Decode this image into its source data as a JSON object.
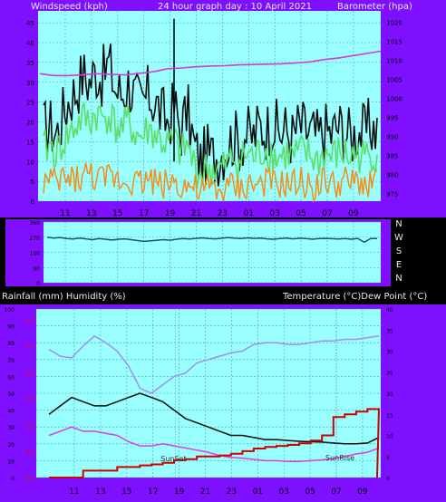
{
  "header": {
    "left_label": "Windspeed (kph)",
    "center_label": "24 hour graph day : 10 April 2021",
    "right_label": "Barometer (hpa)"
  },
  "lower_header": {
    "left_label": "Rainfall (mm)  Humidity (%)",
    "right_label": "Temperature (°C)Dew Point (°C)"
  },
  "compass": {
    "labels": [
      "N",
      "W",
      "S",
      "E",
      "N"
    ]
  },
  "annotations": {
    "sunset": "SunSet",
    "sunrise": "SunRise"
  },
  "colors": {
    "page_bg": "#000000",
    "axis_bg": "#7f10ff",
    "plot_bg": "#99ffff",
    "grid": "#4aa7a7",
    "wind_gust": "#0c0c0c",
    "wind_mid": "#5dde68",
    "wind_avg": "#f28e1c",
    "barometer": "#d63ad6",
    "wind_direction": "#1a4f7a",
    "humidity": "#a58cf0",
    "temperature": "#0a0a0a",
    "dew_point": "#e23be3",
    "rainfall": "#d00000",
    "axis_text": "#000000",
    "red_axis_text": "#e00000",
    "header_text": "#e8e8e8"
  },
  "chart_data": [
    {
      "type": "line",
      "panel": "wind_barometer",
      "x_ticks": [
        "11",
        "13",
        "15",
        "17",
        "19",
        "21",
        "23",
        "01",
        "03",
        "05",
        "07",
        "09"
      ],
      "y_left": {
        "label": "Windspeed (kph)",
        "ticks": [
          0,
          5,
          10,
          15,
          20,
          25,
          30,
          35,
          40,
          45
        ],
        "lim": [
          0,
          48
        ]
      },
      "y_right": {
        "label": "Barometer (hpa)",
        "ticks": [
          975,
          980,
          985,
          990,
          995,
          1000,
          1005,
          1010,
          1015,
          1020
        ],
        "lim": [
          973,
          1023
        ]
      },
      "series": [
        {
          "name": "Gust",
          "axis": "left",
          "values": [
            18,
            19,
            17,
            22,
            26,
            28,
            32,
            30,
            33,
            31,
            35,
            28,
            27,
            30,
            26,
            24,
            27,
            25,
            22,
            20,
            24,
            18,
            23,
            14,
            10,
            12,
            11,
            12,
            14,
            16,
            15,
            17,
            16,
            19,
            18,
            20,
            17,
            18,
            16,
            19,
            18,
            17,
            16,
            18,
            17,
            19,
            18,
            16,
            18,
            17,
            19,
            18
          ]
        },
        {
          "name": "Average",
          "axis": "left",
          "values": [
            13,
            14,
            12,
            15,
            17,
            19,
            21,
            20,
            22,
            21,
            22,
            19,
            18,
            20,
            17,
            16,
            18,
            17,
            15,
            14,
            15,
            12,
            14,
            9,
            7,
            8,
            8,
            8,
            9,
            11,
            10,
            12,
            11,
            12,
            13,
            12,
            11,
            12,
            11,
            12,
            12,
            11,
            10,
            12,
            11,
            12,
            12,
            11,
            12,
            11,
            12,
            12
          ]
        },
        {
          "name": "Wind",
          "axis": "left",
          "values": [
            5,
            5,
            4,
            6,
            5,
            6,
            6,
            7,
            6,
            5,
            6,
            6,
            5,
            6,
            5,
            5,
            6,
            5,
            4,
            5,
            5,
            4,
            4,
            3,
            2,
            3,
            3,
            2,
            3,
            4,
            3,
            4,
            4,
            4,
            5,
            4,
            4,
            4,
            4,
            5,
            4,
            4,
            4,
            5,
            4,
            4,
            5,
            4,
            5,
            4,
            5,
            5
          ]
        },
        {
          "name": "Barometer",
          "axis": "right",
          "x": [
            0,
            1,
            2,
            3,
            4,
            5,
            6,
            7,
            8,
            9,
            10,
            11,
            12,
            13,
            14,
            15,
            16,
            17,
            18,
            19,
            20,
            21,
            22,
            23,
            24
          ],
          "values": [
            1006.5,
            1006.0,
            1006.0,
            1006.2,
            1006.5,
            1006.3,
            1006.2,
            1006.6,
            1007.0,
            1007.8,
            1008.0,
            1008.3,
            1008.5,
            1008.6,
            1008.8,
            1008.9,
            1009.0,
            1009.1,
            1009.3,
            1009.6,
            1010.2,
            1010.6,
            1011.2,
            1011.8,
            1012.4
          ]
        }
      ]
    },
    {
      "type": "line",
      "panel": "wind_direction",
      "x_ticks": [],
      "y_left": {
        "label": "",
        "ticks": [
          0,
          90,
          180,
          270,
          360
        ],
        "lim": [
          0,
          360
        ]
      },
      "y_right": {
        "label": "",
        "ticks": [
          "N",
          "W",
          "S",
          "E",
          "N"
        ]
      },
      "series": [
        {
          "name": "Direction",
          "values": [
            270,
            265,
            268,
            262,
            259,
            265,
            260,
            255,
            262,
            258,
            253,
            258,
            260,
            255,
            250,
            245,
            248,
            252,
            255,
            252,
            258,
            262,
            259,
            263,
            266,
            262,
            260,
            264,
            268,
            264,
            262,
            266,
            263,
            265,
            260,
            258,
            262,
            265,
            260,
            264,
            262,
            258,
            262,
            263,
            261,
            259,
            262,
            258,
            263,
            240,
            262,
            262
          ]
        }
      ]
    },
    {
      "type": "line",
      "panel": "temperature_humidity_rain",
      "x_ticks": [
        "11",
        "13",
        "15",
        "17",
        "19",
        "21",
        "23",
        "01",
        "03",
        "05",
        "07",
        "09"
      ],
      "y_left": {
        "label": "Rainfall (mm)  Humidity (%)",
        "ticks": [
          0,
          10,
          20,
          30,
          40,
          50,
          60,
          70,
          80,
          90,
          100
        ],
        "lim": [
          0,
          100
        ]
      },
      "y_left_inner": {
        "label": "Rainfall (mm)",
        "ticks": [
          "0.0",
          "0.5",
          "1.0",
          "1.5",
          "2.0",
          "2.5",
          "3.0"
        ],
        "lim": [
          0,
          3.2
        ]
      },
      "y_right": {
        "label": "Temperature (°C)",
        "ticks": [
          0,
          5,
          10,
          15,
          20,
          25,
          30,
          35,
          40
        ],
        "lim": [
          0,
          40
        ]
      },
      "series": [
        {
          "name": "Humidity",
          "axis": "left",
          "values": [
            76,
            72,
            71,
            78,
            84,
            80,
            75,
            66,
            53,
            50,
            55,
            60,
            62,
            68,
            70,
            72,
            74,
            75,
            79,
            80,
            80,
            79,
            79,
            80,
            81,
            81,
            82,
            82,
            83,
            84
          ]
        },
        {
          "name": "Temperature",
          "axis": "right",
          "values": [
            15,
            17,
            19,
            18,
            17,
            17,
            18,
            19,
            20,
            19,
            18,
            16,
            14,
            13,
            12,
            11,
            10,
            10,
            9.5,
            9,
            9,
            8.8,
            8.6,
            8.5,
            8.4,
            8.2,
            8.0,
            8.0,
            8.2,
            9.5
          ]
        },
        {
          "name": "Dew Point",
          "axis": "right",
          "values": [
            10,
            11,
            12,
            11,
            11,
            10.5,
            10,
            8.5,
            7.5,
            7.5,
            8,
            7.5,
            7,
            6.5,
            6,
            5.2,
            4.8,
            4.6,
            4.3,
            4.0,
            4.0,
            3.8,
            3.8,
            4.0,
            4.2,
            4.5,
            5.0,
            5.6,
            6.0,
            7.0
          ]
        },
        {
          "name": "Rainfall",
          "axis": "left_inner",
          "values": [
            0.0,
            0.0,
            0.0,
            0.13,
            0.13,
            0.13,
            0.2,
            0.2,
            0.23,
            0.25,
            0.28,
            0.33,
            0.35,
            0.4,
            0.4,
            0.42,
            0.45,
            0.5,
            0.55,
            0.58,
            0.6,
            0.62,
            0.65,
            0.7,
            0.8,
            1.15,
            1.2,
            1.25,
            1.3,
            1.3
          ]
        }
      ],
      "markers": [
        {
          "label": "SunSet",
          "x_hour": 18.7
        },
        {
          "label": "SunRise",
          "x_hour": 7.0
        }
      ]
    }
  ]
}
